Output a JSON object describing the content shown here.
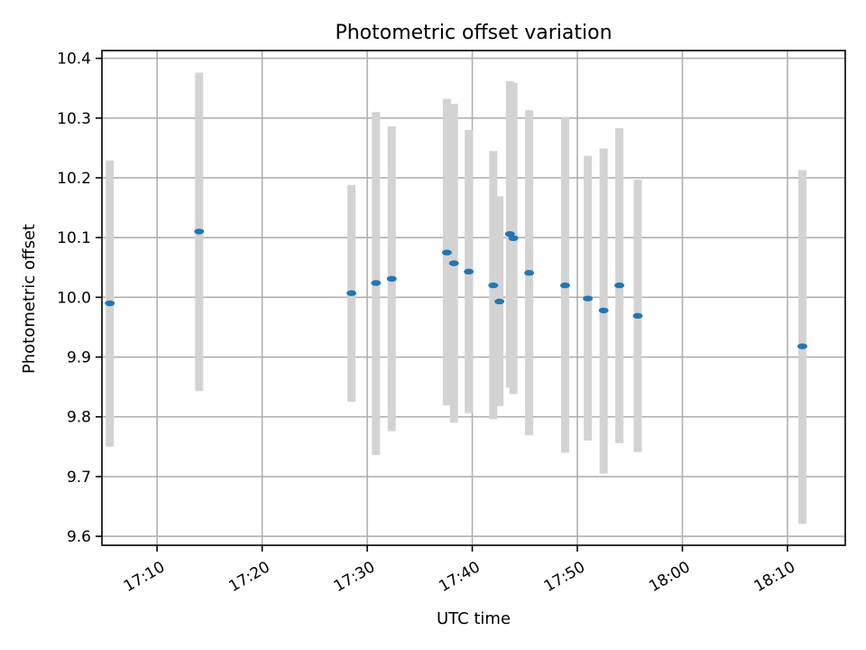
{
  "chart_data": {
    "type": "scatter",
    "title": "Photometric offset variation",
    "xlabel": "UTC time",
    "ylabel": "Photometric offset",
    "grid": true,
    "xlim": [
      "17:04:45",
      "18:15:30"
    ],
    "ylim": [
      9.585,
      10.413
    ],
    "x_ticks": [
      "17:10",
      "17:20",
      "17:30",
      "17:40",
      "17:50",
      "18:00",
      "18:10"
    ],
    "y_ticks": [
      9.6,
      9.7,
      9.8,
      9.9,
      10.0,
      10.1,
      10.2,
      10.3,
      10.4
    ],
    "y_tick_labels": [
      "9.6",
      "9.7",
      "9.8",
      "9.9",
      "10.0",
      "10.1",
      "10.2",
      "10.3",
      "10.4"
    ],
    "marker_color": "#1f77b4",
    "errorbar_color": "#d3d3d3",
    "points": [
      {
        "x": "17:05:30",
        "y": 9.99,
        "low": 9.75,
        "high": 10.229
      },
      {
        "x": "17:14:00",
        "y": 10.11,
        "low": 9.843,
        "high": 10.376
      },
      {
        "x": "17:28:30",
        "y": 10.007,
        "low": 9.825,
        "high": 10.188
      },
      {
        "x": "17:30:50",
        "y": 10.024,
        "low": 9.736,
        "high": 10.31
      },
      {
        "x": "17:32:20",
        "y": 10.031,
        "low": 9.776,
        "high": 10.286
      },
      {
        "x": "17:37:35",
        "y": 10.075,
        "low": 9.819,
        "high": 10.332
      },
      {
        "x": "17:38:15",
        "y": 10.057,
        "low": 9.79,
        "high": 10.324
      },
      {
        "x": "17:39:40",
        "y": 10.043,
        "low": 9.806,
        "high": 10.28
      },
      {
        "x": "17:42:00",
        "y": 10.02,
        "low": 9.796,
        "high": 10.245
      },
      {
        "x": "17:42:35",
        "y": 9.993,
        "low": 9.818,
        "high": 10.169
      },
      {
        "x": "17:43:35",
        "y": 10.106,
        "low": 9.849,
        "high": 10.362
      },
      {
        "x": "17:43:55",
        "y": 10.099,
        "low": 9.838,
        "high": 10.359
      },
      {
        "x": "17:45:25",
        "y": 10.041,
        "low": 9.769,
        "high": 10.313
      },
      {
        "x": "17:48:50",
        "y": 10.02,
        "low": 9.74,
        "high": 10.302
      },
      {
        "x": "17:51:00",
        "y": 9.998,
        "low": 9.76,
        "high": 10.237
      },
      {
        "x": "17:52:30",
        "y": 9.978,
        "low": 9.705,
        "high": 10.249
      },
      {
        "x": "17:54:00",
        "y": 10.02,
        "low": 9.756,
        "high": 10.283
      },
      {
        "x": "17:55:45",
        "y": 9.969,
        "low": 9.741,
        "high": 10.197
      },
      {
        "x": "18:11:25",
        "y": 9.918,
        "low": 9.621,
        "high": 10.213
      }
    ]
  }
}
